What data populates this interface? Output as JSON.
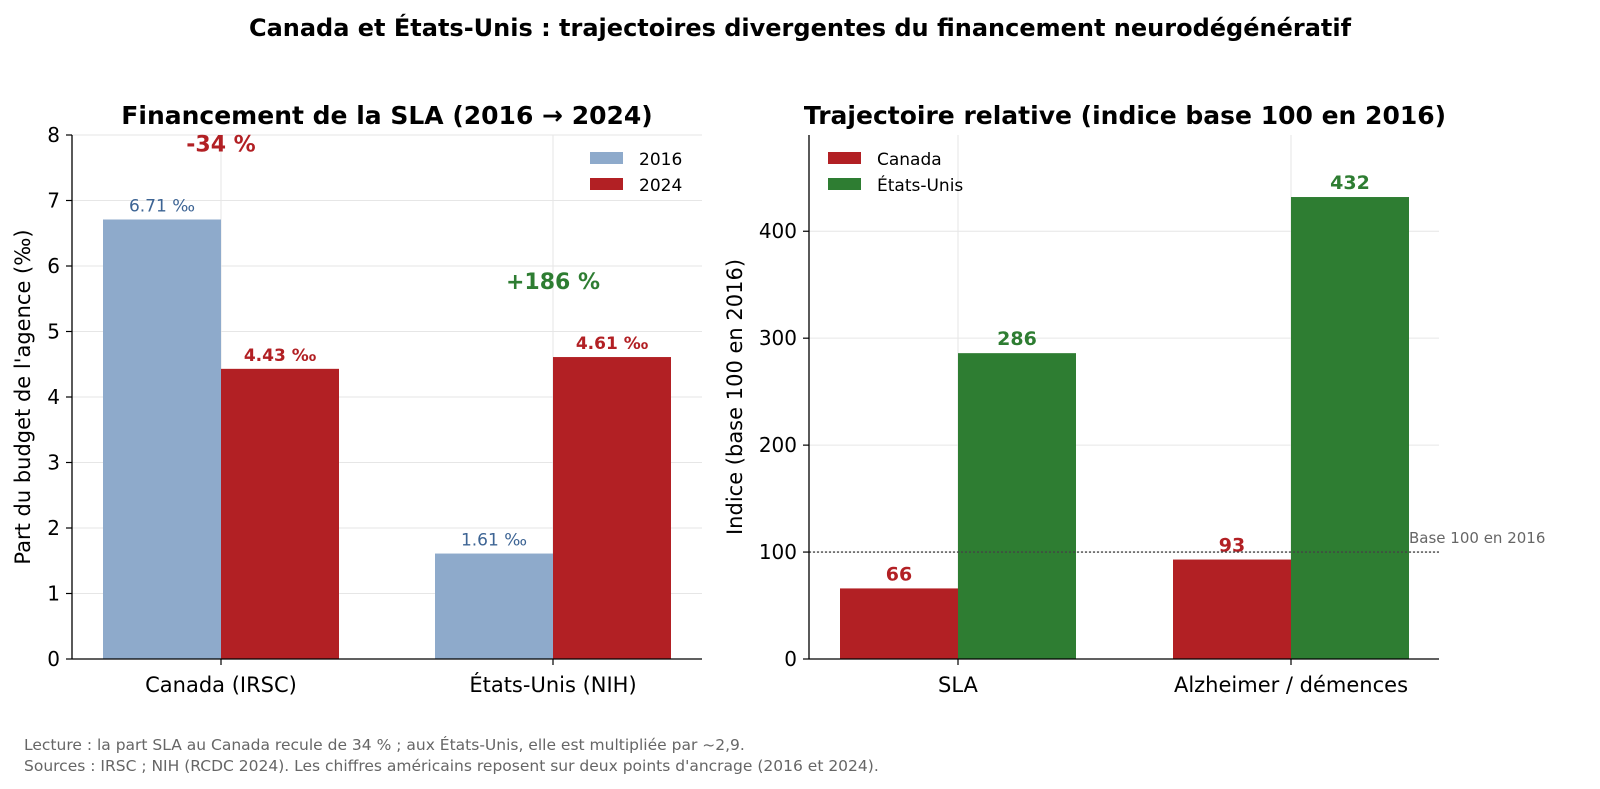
{
  "suptitle": "Canada et États-Unis : trajectoires divergentes du financement neurodégénératif",
  "footer": {
    "line1": "Lecture : la part SLA au Canada recule de 34 % ; aux États-Unis, elle est multipliée par ~2,9.",
    "line2": "Sources : IRSC ; NIH (RCDC 2024). Les chiffres américains reposent sur deux points d'ancrage (2016 et 2024)."
  },
  "colors": {
    "y2016": "#8eaacb",
    "y2024": "#b22024",
    "canada": "#b22024",
    "usa": "#2e7d32",
    "label2016": "#3d6494",
    "grid": "#e6e6e6",
    "note": "#666666"
  },
  "chart_data": [
    {
      "type": "bar",
      "title": "Financement de la SLA (2016 → 2024)",
      "xlabel": "",
      "ylabel": "Part du budget de l'agence (‰)",
      "categories": [
        "Canada (IRSC)",
        "États-Unis (NIH)"
      ],
      "ylim": [
        0,
        8
      ],
      "yticks": [
        0,
        1,
        2,
        3,
        4,
        5,
        6,
        7,
        8
      ],
      "series": [
        {
          "name": "2016",
          "values": [
            6.71,
            1.61
          ],
          "labels": [
            "6.71 ‰",
            "1.61 ‰"
          ]
        },
        {
          "name": "2024",
          "values": [
            4.43,
            4.61
          ],
          "labels": [
            "4.43 ‰",
            "4.61 ‰"
          ]
        }
      ],
      "annotations": [
        {
          "text": "-34 %",
          "category": "Canada (IRSC)",
          "y": 7.75,
          "color": "canada"
        },
        {
          "text": "+186 %",
          "category": "États-Unis (NIH)",
          "y": 5.65,
          "color": "usa"
        }
      ],
      "grid": true,
      "legend": "top-right"
    },
    {
      "type": "bar",
      "title": "Trajectoire relative (indice base 100 en 2016)",
      "xlabel": "",
      "ylabel": "Indice (base 100 en 2016)",
      "categories": [
        "SLA",
        "Alzheimer / démences"
      ],
      "ylim": [
        0,
        490
      ],
      "yticks": [
        0,
        100,
        200,
        300,
        400
      ],
      "series": [
        {
          "name": "Canada",
          "values": [
            66,
            93
          ],
          "labels": [
            "66",
            "93"
          ]
        },
        {
          "name": "États-Unis",
          "values": [
            286,
            432
          ],
          "labels": [
            "286",
            "432"
          ]
        }
      ],
      "reference_line": {
        "y": 100,
        "label": "Base 100 en 2016"
      },
      "grid": true,
      "legend": "top-left"
    }
  ]
}
